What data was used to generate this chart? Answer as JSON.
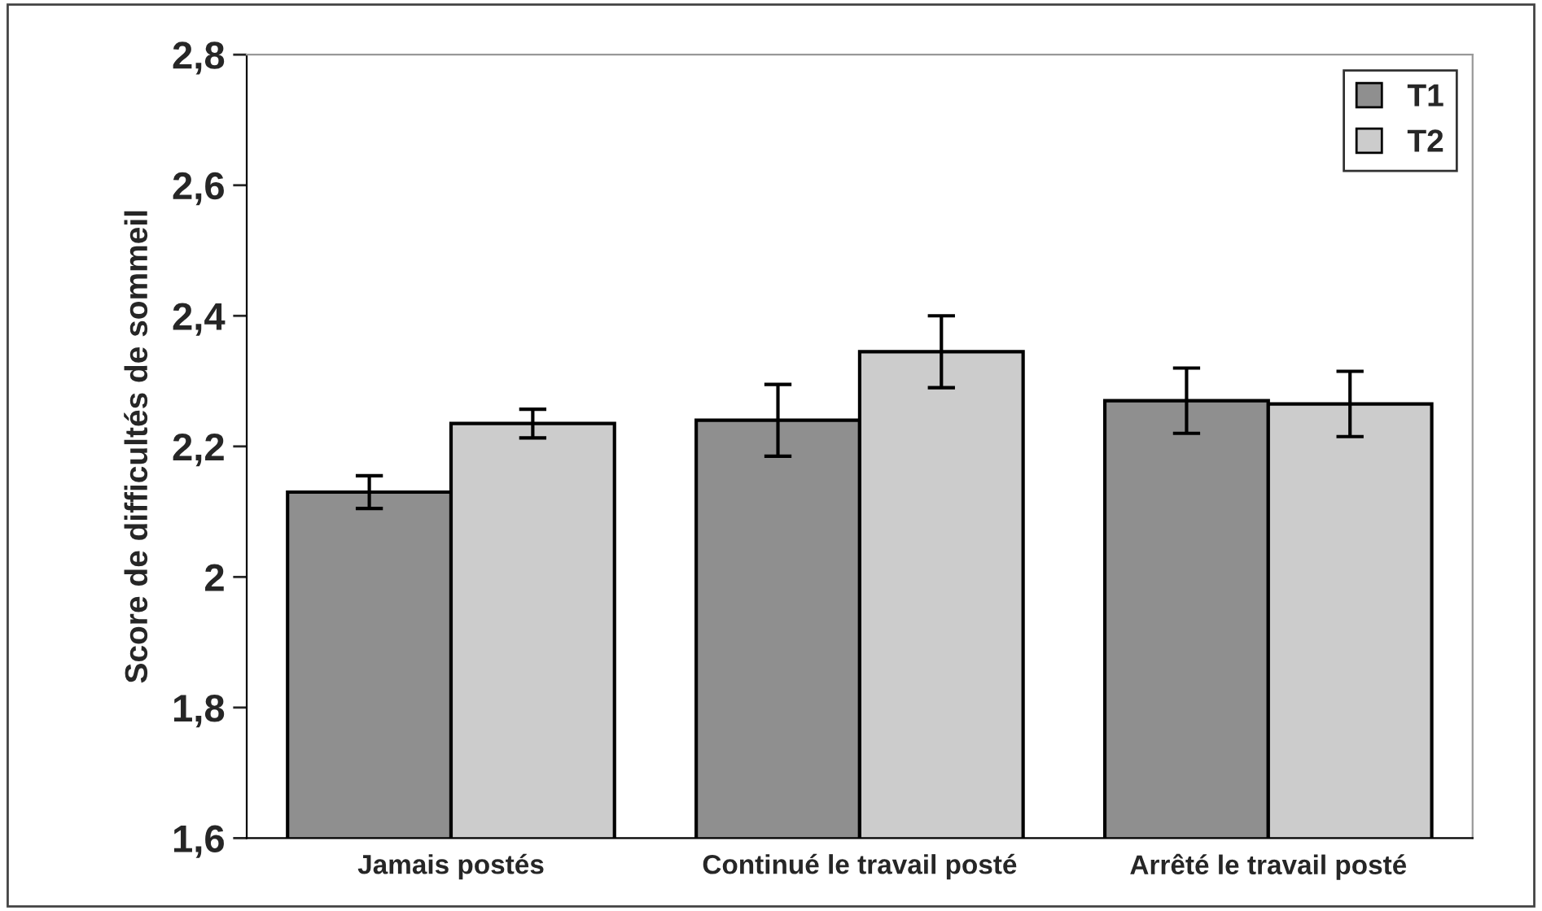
{
  "chart_data": {
    "type": "bar",
    "ylabel": "Score de difficultés de sommeil",
    "categories": [
      "Jamais postés",
      "Continué le travail posté",
      "Arrêté le travail posté"
    ],
    "series": [
      {
        "name": "T1",
        "color": "#8f8f8f",
        "values": [
          2.13,
          2.24,
          2.27
        ],
        "errors": [
          0.025,
          0.055,
          0.05
        ]
      },
      {
        "name": "T2",
        "color": "#cccccc",
        "values": [
          2.235,
          2.345,
          2.265
        ],
        "errors": [
          0.022,
          0.055,
          0.05
        ]
      }
    ],
    "ylim": [
      1.6,
      2.8
    ],
    "yticks": [
      {
        "value": 1.6,
        "label": "1,6"
      },
      {
        "value": 1.8,
        "label": "1,8"
      },
      {
        "value": 2,
        "label": "2"
      },
      {
        "value": 2.2,
        "label": "2,2"
      },
      {
        "value": 2.4,
        "label": "2,4"
      },
      {
        "value": 2.6,
        "label": "2,6"
      },
      {
        "value": 2.8,
        "label": "2,8"
      }
    ],
    "grid": false,
    "legend": "top right"
  }
}
